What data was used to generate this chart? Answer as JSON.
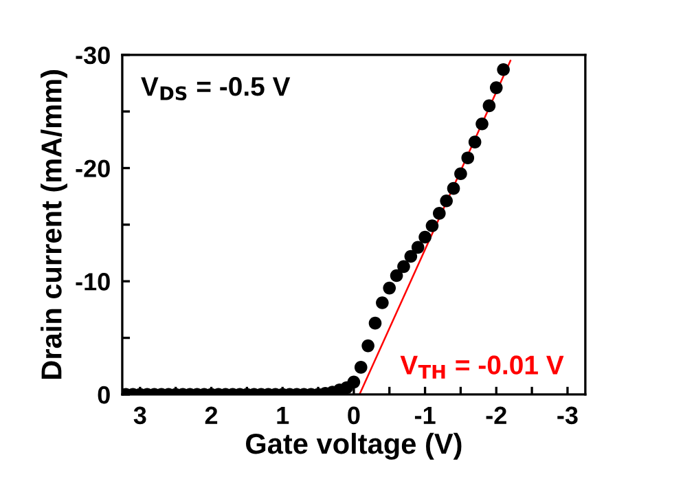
{
  "chart_data": {
    "type": "scatter",
    "xlabel": "Gate voltage (V)",
    "ylabel": "Drain current (mA/mm)",
    "xlim": [
      3.25,
      -3.25
    ],
    "ylim": [
      0,
      -30
    ],
    "xticks": [
      3,
      {
        "value": 2.5,
        "label": null
      },
      2,
      {
        "value": 1.5,
        "label": null
      },
      1,
      {
        "value": 0.5,
        "label": null
      },
      0,
      {
        "value": -0.5,
        "label": null
      },
      -1,
      {
        "value": -1.5,
        "label": null
      },
      -2,
      {
        "value": -2.5,
        "label": null
      },
      -3
    ],
    "yticks": [
      0,
      {
        "value": -5,
        "label": null
      },
      -10,
      {
        "value": -15,
        "label": null
      },
      -20,
      {
        "value": -25,
        "label": null
      },
      -30
    ],
    "grid": false,
    "legend": false,
    "series": [
      {
        "marker": "circle",
        "color": "#000000",
        "x": [
          3.2,
          3.1,
          3.0,
          2.9,
          2.8,
          2.7,
          2.6,
          2.5,
          2.4,
          2.3,
          2.2,
          2.1,
          2.0,
          1.9,
          1.8,
          1.7,
          1.6,
          1.5,
          1.4,
          1.3,
          1.2,
          1.1,
          1.0,
          0.9,
          0.8,
          0.7,
          0.6,
          0.5,
          0.4,
          0.3,
          0.2,
          0.1,
          0.0,
          -0.1,
          -0.2,
          -0.3,
          -0.4,
          -0.5,
          -0.6,
          -0.7,
          -0.8,
          -0.9,
          -1.0,
          -1.1,
          -1.2,
          -1.3,
          -1.4,
          -1.5,
          -1.6,
          -1.7,
          -1.8,
          -1.9,
          -2.0,
          -2.1
        ],
        "values": [
          0,
          0,
          0,
          0,
          0,
          0,
          0,
          0,
          0,
          0,
          0,
          0,
          0,
          0,
          0,
          0,
          0,
          0,
          0,
          0,
          0,
          0,
          0,
          0,
          0,
          0,
          0,
          0,
          -0.1,
          -0.2,
          -0.4,
          -0.6,
          -1.1,
          -2.4,
          -4.3,
          -6.3,
          -8.1,
          -9.4,
          -10.5,
          -11.3,
          -12.2,
          -13.0,
          -13.9,
          -14.9,
          -16.0,
          -17.1,
          -18.2,
          -19.5,
          -20.9,
          -22.3,
          -23.9,
          -25.5,
          -27.1,
          -28.7
        ]
      },
      {
        "type": "line",
        "color": "#ff0000",
        "x": [
          -0.08,
          -2.2
        ],
        "values": [
          0,
          -29.5
        ]
      }
    ],
    "annotations": [
      "V$_{DS}$ = -0.5 V",
      "V$_{TH}$ = -0.01 V"
    ]
  }
}
